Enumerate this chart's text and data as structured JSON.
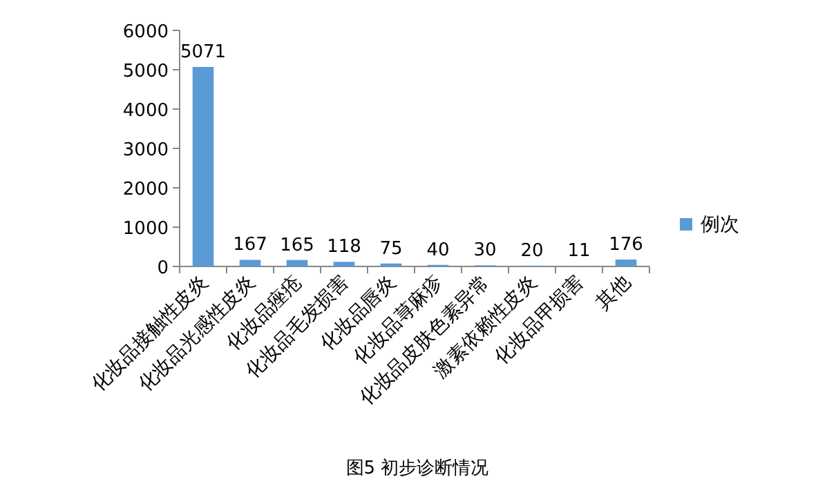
{
  "chart_data": {
    "type": "bar",
    "categories": [
      "化妆品接触性皮炎",
      "化妆品光感性皮炎",
      "化妆品痤疮",
      "化妆品毛发损害",
      "化妆品唇炎",
      "化妆品荨麻疹",
      "化妆品皮肤色素异常",
      "激素依赖性皮炎",
      "化妆品甲损害",
      "其他"
    ],
    "series": [
      {
        "name": "例次",
        "color": "#5b9bd5",
        "values": [
          5071,
          167,
          165,
          118,
          75,
          40,
          30,
          20,
          11,
          176
        ]
      }
    ],
    "ylim": [
      0,
      6000
    ],
    "yticks": [
      0,
      1000,
      2000,
      3000,
      4000,
      5000,
      6000
    ],
    "data_labels": true,
    "legend": "right",
    "annotations": [
      "图5 初步诊断情况"
    ]
  }
}
